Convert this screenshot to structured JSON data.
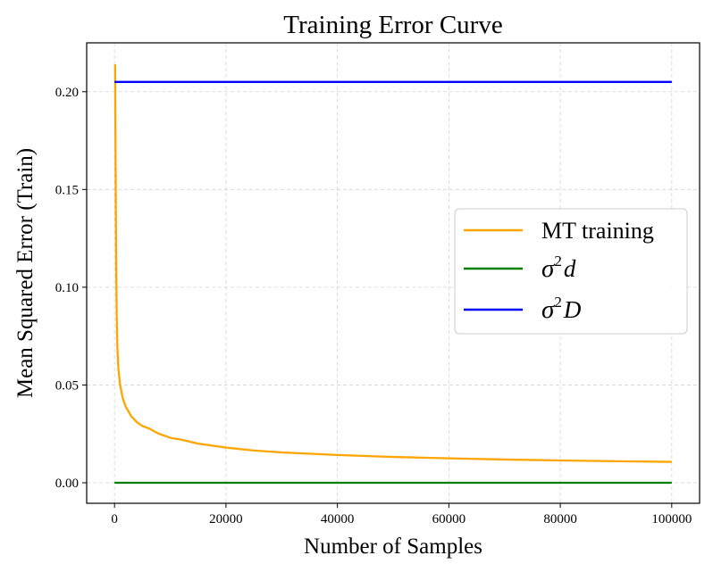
{
  "chart_data": {
    "type": "line",
    "title": "Training Error Curve",
    "xlabel": "Number of Samples",
    "ylabel": "Mean Squared Error (Train)",
    "xlim": [
      -5000,
      105000
    ],
    "ylim": [
      -0.0105,
      0.225
    ],
    "xticks": [
      0,
      20000,
      40000,
      60000,
      80000,
      100000
    ],
    "xtick_labels": [
      "0",
      "20000",
      "40000",
      "60000",
      "80000",
      "100000"
    ],
    "yticks": [
      0.0,
      0.05,
      0.1,
      0.15,
      0.2
    ],
    "ytick_labels": [
      "0.00",
      "0.05",
      "0.10",
      "0.15",
      "0.20"
    ],
    "grid": true,
    "legend_position": "center-right",
    "series": [
      {
        "name": "MT training",
        "legend_label": "MT training",
        "legend_math": false,
        "color": "#ffa500",
        "x": [
          100,
          200,
          300,
          400,
          500,
          700,
          1000,
          1500,
          2000,
          3000,
          4000,
          5000,
          6000,
          8000,
          10000,
          12000,
          15000,
          20000,
          25000,
          30000,
          40000,
          50000,
          60000,
          70000,
          80000,
          90000,
          100000
        ],
        "y": [
          0.214,
          0.16,
          0.11,
          0.085,
          0.07,
          0.058,
          0.05,
          0.043,
          0.039,
          0.034,
          0.031,
          0.029,
          0.028,
          0.025,
          0.023,
          0.022,
          0.02,
          0.018,
          0.0165,
          0.0155,
          0.0142,
          0.0132,
          0.0125,
          0.0119,
          0.0114,
          0.011,
          0.0107
        ]
      },
      {
        "name": "sigma^2 d",
        "legend_base": "σ",
        "legend_sup": "2",
        "legend_var": "d",
        "legend_math": true,
        "color": "#008000",
        "x": [
          0,
          100000
        ],
        "y": [
          0.0,
          0.0
        ]
      },
      {
        "name": "sigma^2 D",
        "legend_base": "σ",
        "legend_sup": "2",
        "legend_var": "D",
        "legend_math": true,
        "color": "#0000ff",
        "x": [
          0,
          100000
        ],
        "y": [
          0.205,
          0.205
        ]
      }
    ]
  }
}
